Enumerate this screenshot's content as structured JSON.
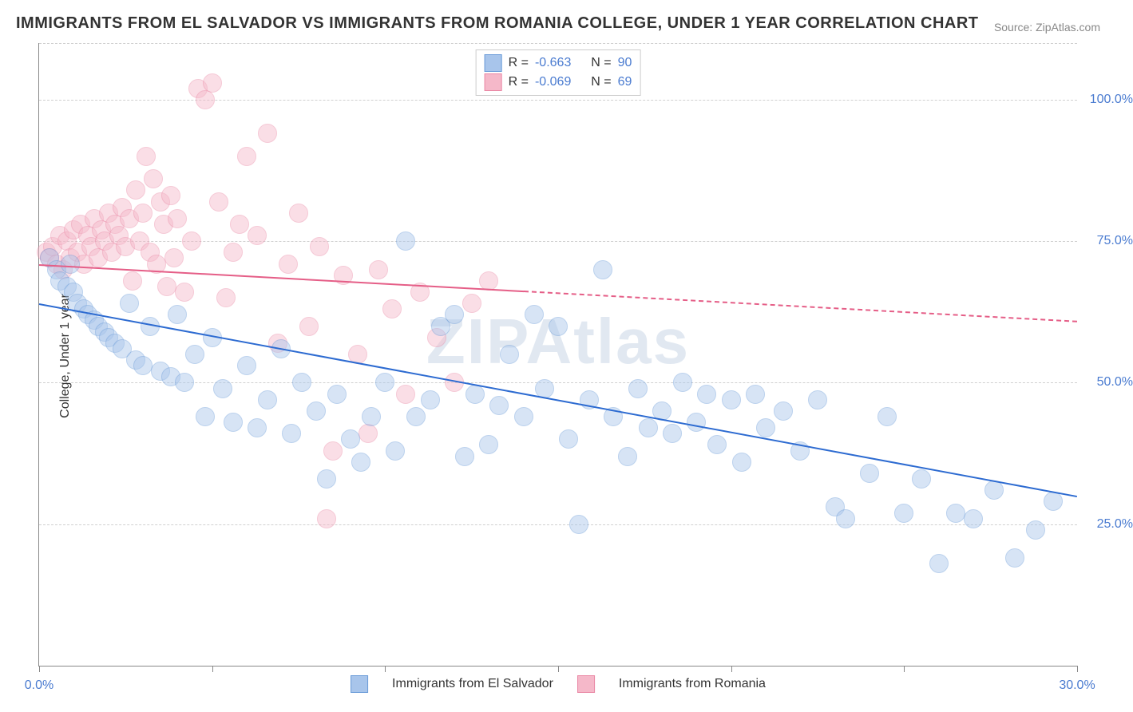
{
  "title": "IMMIGRANTS FROM EL SALVADOR VS IMMIGRANTS FROM ROMANIA COLLEGE, UNDER 1 YEAR CORRELATION CHART",
  "source": "Source: ZipAtlas.com",
  "watermark": "ZIPAtlas",
  "ylabel": "College, Under 1 year",
  "chart": {
    "type": "scatter",
    "background_color": "#ffffff",
    "grid_color": "#d0d0d0",
    "axis_color": "#888888",
    "xlim": [
      0,
      30
    ],
    "ylim": [
      0,
      110
    ],
    "xticks": [
      0,
      5,
      10,
      15,
      20,
      25,
      30
    ],
    "xtick_labels": {
      "0": "0.0%",
      "30": "30.0%"
    },
    "yticks": [
      25,
      50,
      75,
      100
    ],
    "ytick_labels": {
      "25": "25.0%",
      "50": "50.0%",
      "75": "75.0%",
      "100": "100.0%"
    },
    "tick_label_color": "#4a7bd0",
    "tick_label_fontsize": 16,
    "title_fontsize": 20,
    "title_color": "#333333",
    "marker_radius": 11,
    "marker_opacity": 0.45,
    "trend_width": 2
  },
  "series": {
    "el_salvador": {
      "label": "Immigrants from El Salvador",
      "color": "#a8c5eb",
      "stroke": "#6a9bd8",
      "trend_color": "#2d6bd1",
      "R": "-0.663",
      "N": "90",
      "trend": {
        "x1": 0,
        "y1": 64,
        "x2": 30,
        "y2": 30,
        "solid_until_x": 30
      },
      "points": [
        [
          0.3,
          72
        ],
        [
          0.5,
          70
        ],
        [
          0.6,
          68
        ],
        [
          0.8,
          67
        ],
        [
          0.9,
          71
        ],
        [
          1.0,
          66
        ],
        [
          1.1,
          64
        ],
        [
          1.3,
          63
        ],
        [
          1.4,
          62
        ],
        [
          1.6,
          61
        ],
        [
          1.7,
          60
        ],
        [
          1.9,
          59
        ],
        [
          2.0,
          58
        ],
        [
          2.2,
          57
        ],
        [
          2.4,
          56
        ],
        [
          2.6,
          64
        ],
        [
          2.8,
          54
        ],
        [
          3.0,
          53
        ],
        [
          3.2,
          60
        ],
        [
          3.5,
          52
        ],
        [
          3.8,
          51
        ],
        [
          4.0,
          62
        ],
        [
          4.2,
          50
        ],
        [
          4.5,
          55
        ],
        [
          4.8,
          44
        ],
        [
          5.0,
          58
        ],
        [
          5.3,
          49
        ],
        [
          5.6,
          43
        ],
        [
          6.0,
          53
        ],
        [
          6.3,
          42
        ],
        [
          6.6,
          47
        ],
        [
          7.0,
          56
        ],
        [
          7.3,
          41
        ],
        [
          7.6,
          50
        ],
        [
          8.0,
          45
        ],
        [
          8.3,
          33
        ],
        [
          8.6,
          48
        ],
        [
          9.0,
          40
        ],
        [
          9.3,
          36
        ],
        [
          9.6,
          44
        ],
        [
          10.0,
          50
        ],
        [
          10.3,
          38
        ],
        [
          10.6,
          75
        ],
        [
          10.9,
          44
        ],
        [
          11.3,
          47
        ],
        [
          11.6,
          60
        ],
        [
          12.0,
          62
        ],
        [
          12.3,
          37
        ],
        [
          12.6,
          48
        ],
        [
          13.0,
          39
        ],
        [
          13.3,
          46
        ],
        [
          13.6,
          55
        ],
        [
          14.0,
          44
        ],
        [
          14.3,
          62
        ],
        [
          14.6,
          49
        ],
        [
          15.0,
          60
        ],
        [
          15.3,
          40
        ],
        [
          15.6,
          25
        ],
        [
          15.9,
          47
        ],
        [
          16.3,
          70
        ],
        [
          16.6,
          44
        ],
        [
          17.0,
          37
        ],
        [
          17.3,
          49
        ],
        [
          17.6,
          42
        ],
        [
          18.0,
          45
        ],
        [
          18.3,
          41
        ],
        [
          18.6,
          50
        ],
        [
          19.0,
          43
        ],
        [
          19.3,
          48
        ],
        [
          19.6,
          39
        ],
        [
          20.0,
          47
        ],
        [
          20.3,
          36
        ],
        [
          20.7,
          48
        ],
        [
          21.0,
          42
        ],
        [
          21.5,
          45
        ],
        [
          22.0,
          38
        ],
        [
          22.5,
          47
        ],
        [
          23.0,
          28
        ],
        [
          23.3,
          26
        ],
        [
          24.0,
          34
        ],
        [
          24.5,
          44
        ],
        [
          25.0,
          27
        ],
        [
          25.5,
          33
        ],
        [
          26.0,
          18
        ],
        [
          26.5,
          27
        ],
        [
          27.0,
          26
        ],
        [
          27.6,
          31
        ],
        [
          28.2,
          19
        ],
        [
          28.8,
          24
        ],
        [
          29.3,
          29
        ]
      ]
    },
    "romania": {
      "label": "Immigrants from Romania",
      "color": "#f5b8c9",
      "stroke": "#ea88a5",
      "trend_color": "#e55e87",
      "R": "-0.069",
      "N": "69",
      "trend": {
        "x1": 0,
        "y1": 71,
        "x2": 30,
        "y2": 61,
        "solid_until_x": 14
      },
      "points": [
        [
          0.2,
          73
        ],
        [
          0.3,
          72
        ],
        [
          0.4,
          74
        ],
        [
          0.5,
          71
        ],
        [
          0.6,
          76
        ],
        [
          0.7,
          70
        ],
        [
          0.8,
          75
        ],
        [
          0.9,
          72
        ],
        [
          1.0,
          77
        ],
        [
          1.1,
          73
        ],
        [
          1.2,
          78
        ],
        [
          1.3,
          71
        ],
        [
          1.4,
          76
        ],
        [
          1.5,
          74
        ],
        [
          1.6,
          79
        ],
        [
          1.7,
          72
        ],
        [
          1.8,
          77
        ],
        [
          1.9,
          75
        ],
        [
          2.0,
          80
        ],
        [
          2.1,
          73
        ],
        [
          2.2,
          78
        ],
        [
          2.3,
          76
        ],
        [
          2.4,
          81
        ],
        [
          2.5,
          74
        ],
        [
          2.6,
          79
        ],
        [
          2.7,
          68
        ],
        [
          2.8,
          84
        ],
        [
          2.9,
          75
        ],
        [
          3.0,
          80
        ],
        [
          3.1,
          90
        ],
        [
          3.2,
          73
        ],
        [
          3.3,
          86
        ],
        [
          3.4,
          71
        ],
        [
          3.5,
          82
        ],
        [
          3.6,
          78
        ],
        [
          3.7,
          67
        ],
        [
          3.8,
          83
        ],
        [
          3.9,
          72
        ],
        [
          4.0,
          79
        ],
        [
          4.2,
          66
        ],
        [
          4.4,
          75
        ],
        [
          4.6,
          102
        ],
        [
          4.8,
          100
        ],
        [
          5.0,
          103
        ],
        [
          5.2,
          82
        ],
        [
          5.4,
          65
        ],
        [
          5.6,
          73
        ],
        [
          5.8,
          78
        ],
        [
          6.0,
          90
        ],
        [
          6.3,
          76
        ],
        [
          6.6,
          94
        ],
        [
          6.9,
          57
        ],
        [
          7.2,
          71
        ],
        [
          7.5,
          80
        ],
        [
          7.8,
          60
        ],
        [
          8.1,
          74
        ],
        [
          8.5,
          38
        ],
        [
          8.8,
          69
        ],
        [
          9.2,
          55
        ],
        [
          9.5,
          41
        ],
        [
          9.8,
          70
        ],
        [
          10.2,
          63
        ],
        [
          10.6,
          48
        ],
        [
          11.0,
          66
        ],
        [
          11.5,
          58
        ],
        [
          12.0,
          50
        ],
        [
          12.5,
          64
        ],
        [
          13.0,
          68
        ],
        [
          8.3,
          26
        ]
      ]
    }
  },
  "legend_top": {
    "r_label": "R =",
    "n_label": "N ="
  }
}
